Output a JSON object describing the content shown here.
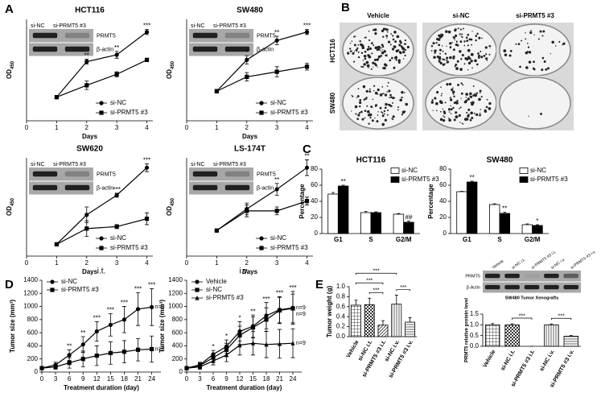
{
  "panels": [
    "A",
    "B",
    "C",
    "D",
    "E"
  ],
  "colony_assay": {
    "columns": [
      "Vehicle",
      "si-NC",
      "si-PRMT5 #3"
    ],
    "rows": [
      "HCT116",
      "SW480"
    ]
  },
  "chart_data": [
    {
      "type": "line",
      "title": "HCT116",
      "xlabel": "Days",
      "ylabel": {
        "text": "OD",
        "subscript": "450"
      },
      "x": [
        1,
        2,
        3,
        4
      ],
      "xlim": [
        0,
        4.2
      ],
      "xticks": [
        0,
        1,
        2,
        3,
        4
      ],
      "ylim": [
        0,
        1.2
      ],
      "legend": "lower right",
      "inset": {
        "lanes": [
          "si-NC",
          "si-PRMT5 #3"
        ],
        "bands": [
          "PRMT5",
          "β-actin"
        ]
      },
      "series": [
        {
          "name": "si-NC",
          "color": "#000000",
          "marker": "circle",
          "values": [
            0.28,
            0.7,
            0.78,
            1.05
          ],
          "errors": [
            0.02,
            0.03,
            0.04,
            0.03
          ]
        },
        {
          "name": "si-PRMT5 #3",
          "color": "#000000",
          "marker": "square",
          "values": [
            0.28,
            0.42,
            0.55,
            0.72
          ],
          "errors": [
            0.02,
            0.05,
            0.03,
            0.02
          ]
        }
      ],
      "annotations": [
        {
          "x": 2,
          "text": "**"
        },
        {
          "x": 3,
          "text": "**"
        },
        {
          "x": 4,
          "text": "***"
        }
      ]
    },
    {
      "type": "line",
      "title": "SW480",
      "xlabel": "Days",
      "ylabel": {
        "text": "OD",
        "subscript": "450"
      },
      "x": [
        1,
        2,
        3,
        4
      ],
      "xlim": [
        0,
        4.2
      ],
      "xticks": [
        0,
        1,
        2,
        3,
        4
      ],
      "ylim": [
        0,
        1.2
      ],
      "legend": "lower right",
      "inset": {
        "lanes": [
          "si-NC",
          "si-PRMT5 #3"
        ],
        "bands": [
          "PRMT5",
          "β-actin"
        ]
      },
      "series": [
        {
          "name": "si-NC",
          "color": "#000000",
          "marker": "circle",
          "values": [
            0.35,
            0.72,
            0.95,
            1.05
          ],
          "errors": [
            0.02,
            0.05,
            0.05,
            0.03
          ]
        },
        {
          "name": "si-PRMT5 #3",
          "color": "#000000",
          "marker": "square",
          "values": [
            0.35,
            0.52,
            0.58,
            0.64
          ],
          "errors": [
            0.02,
            0.05,
            0.06,
            0.04
          ]
        }
      ],
      "annotations": [
        {
          "x": 2,
          "text": "*"
        },
        {
          "x": 3,
          "text": "**"
        },
        {
          "x": 4,
          "text": "***"
        }
      ]
    },
    {
      "type": "line",
      "title": "SW620",
      "xlabel": "Days",
      "ylabel": {
        "text": "OD",
        "subscript": "450"
      },
      "x": [
        1,
        2,
        3,
        4
      ],
      "xlim": [
        0,
        4.2
      ],
      "xticks": [
        0,
        1,
        2,
        3,
        4
      ],
      "ylim": [
        0,
        0.5
      ],
      "legend": "lower right",
      "inset": {
        "lanes": [
          "si-NC",
          "si-PRMT5 #3"
        ],
        "bands": [
          "PRMT5",
          "β-actin"
        ]
      },
      "series": [
        {
          "name": "si-NC",
          "color": "#000000",
          "marker": "circle",
          "values": [
            0.06,
            0.21,
            0.31,
            0.45
          ],
          "errors": [
            0.005,
            0.04,
            0.01,
            0.02
          ]
        },
        {
          "name": "si-PRMT5 #3",
          "color": "#000000",
          "marker": "square",
          "values": [
            0.06,
            0.14,
            0.15,
            0.19
          ],
          "errors": [
            0.005,
            0.04,
            0.01,
            0.03
          ]
        }
      ],
      "annotations": [
        {
          "x": 3,
          "text": "***"
        },
        {
          "x": 4,
          "text": "***"
        }
      ]
    },
    {
      "type": "line",
      "title": "LS-174T",
      "xlabel": "Days",
      "ylabel": {
        "text": "OD",
        "subscript": "450"
      },
      "x": [
        1,
        2,
        3,
        4
      ],
      "xlim": [
        0,
        4.2
      ],
      "xticks": [
        0,
        1,
        2,
        3,
        4
      ],
      "ylim": [
        0,
        0.5
      ],
      "legend": "lower right",
      "inset": {
        "lanes": [
          "si-NC",
          "si-PRMT5 #3"
        ],
        "bands": [
          "PRMT5",
          "β-actin"
        ]
      },
      "series": [
        {
          "name": "si-NC",
          "color": "#000000",
          "marker": "circle",
          "values": [
            0.13,
            0.24,
            0.34,
            0.45
          ],
          "errors": [
            0.005,
            0.03,
            0.03,
            0.04
          ]
        },
        {
          "name": "si-PRMT5 #3",
          "color": "#000000",
          "marker": "square",
          "values": [
            0.13,
            0.23,
            0.23,
            0.28
          ],
          "errors": [
            0.005,
            0.03,
            0.02,
            0.02
          ]
        }
      ],
      "annotations": [
        {
          "x": 3,
          "text": "**"
        },
        {
          "x": 4,
          "text": "**"
        }
      ]
    },
    {
      "type": "bar",
      "title": "HCT116",
      "ylabel": "Percentage",
      "categories": [
        "G1",
        "S",
        "G2/M"
      ],
      "ylim": [
        0,
        80
      ],
      "yticks": [
        0,
        20,
        40,
        60,
        80
      ],
      "legend": "upper right",
      "series": [
        {
          "name": "si-NC",
          "color": "#ffffff",
          "values": [
            49,
            26,
            24
          ],
          "errors": [
            2,
            1.5,
            0.8
          ]
        },
        {
          "name": "si-PRMT5 #3",
          "color": "#000000",
          "values": [
            59,
            26,
            14
          ],
          "errors": [
            1,
            1,
            1.5
          ]
        }
      ],
      "annotations": [
        {
          "category": "G1",
          "series": "si-PRMT5 #3",
          "text": "**"
        },
        {
          "category": "G2/M",
          "series": "si-PRMT5 #3",
          "text": "##"
        }
      ]
    },
    {
      "type": "bar",
      "title": "SW480",
      "ylabel": "Percentage",
      "categories": [
        "G1",
        "S",
        "G2/M"
      ],
      "ylim": [
        0,
        80
      ],
      "yticks": [
        0,
        20,
        40,
        60,
        80
      ],
      "legend": "upper right",
      "series": [
        {
          "name": "si-NC",
          "color": "#ffffff",
          "values": [
            52,
            36,
            11
          ],
          "errors": [
            0.5,
            1,
            1
          ]
        },
        {
          "name": "si-PRMT5 #3",
          "color": "#000000",
          "values": [
            64,
            25,
            10
          ],
          "errors": [
            1,
            1.5,
            1
          ]
        }
      ],
      "annotations": [
        {
          "category": "G1",
          "series": "si-PRMT5 #3",
          "text": "**"
        },
        {
          "category": "S",
          "series": "si-PRMT5 #3",
          "text": "**"
        },
        {
          "category": "G2/M",
          "series": "si-PRMT5 #3",
          "text": "*"
        }
      ]
    },
    {
      "type": "line",
      "title": "i.t.",
      "xlabel": "Treatment duration (day)",
      "ylabel": "Tumor size (mm³)",
      "x": [
        0,
        3,
        6,
        9,
        12,
        15,
        18,
        21,
        24
      ],
      "xlim": [
        0,
        26
      ],
      "xticks": [
        0,
        3,
        6,
        9,
        12,
        15,
        18,
        21,
        24
      ],
      "ylim": [
        0,
        1400
      ],
      "yticks": [
        0,
        200,
        400,
        600,
        800,
        1000,
        1200,
        1400
      ],
      "legend": "upper left",
      "series": [
        {
          "name": "si-NC",
          "color": "#000000",
          "marker": "circle",
          "end_label": "n=9",
          "values": [
            60,
            110,
            260,
            420,
            620,
            720,
            800,
            960,
            990
          ],
          "errors": [
            20,
            40,
            80,
            120,
            150,
            170,
            200,
            250,
            280
          ]
        },
        {
          "name": "si-PRMT5 #3",
          "color": "#000000",
          "marker": "square",
          "end_label": "n=8",
          "values": [
            60,
            80,
            140,
            200,
            250,
            290,
            310,
            340,
            350
          ],
          "errors": [
            20,
            40,
            80,
            120,
            150,
            170,
            170,
            170,
            200
          ]
        }
      ],
      "annotations": [
        {
          "x": 6,
          "text": "**"
        },
        {
          "x": 9,
          "text": "**"
        },
        {
          "x": 12,
          "text": "***"
        },
        {
          "x": 15,
          "text": "***"
        },
        {
          "x": 18,
          "text": "***"
        },
        {
          "x": 21,
          "text": "***"
        },
        {
          "x": 24,
          "text": "***"
        }
      ]
    },
    {
      "type": "line",
      "title": "i.v.",
      "xlabel": "Treatment duration (day)",
      "ylabel": "Tumor size (mm³)",
      "x": [
        0,
        3,
        6,
        9,
        12,
        15,
        18,
        21,
        24
      ],
      "xlim": [
        0,
        26
      ],
      "xticks": [
        0,
        3,
        6,
        9,
        12,
        15,
        18,
        21,
        24
      ],
      "ylim": [
        0,
        1400
      ],
      "yticks": [
        0,
        200,
        400,
        600,
        800,
        1000,
        1200,
        1400
      ],
      "legend": "upper left",
      "series": [
        {
          "name": "Vehicle",
          "color": "#000000",
          "marker": "circle",
          "end_label": "n=9",
          "values": [
            60,
            110,
            270,
            390,
            620,
            700,
            860,
            950,
            980
          ],
          "errors": [
            20,
            40,
            60,
            100,
            150,
            170,
            200,
            200,
            250
          ]
        },
        {
          "name": "si-NC",
          "color": "#000000",
          "marker": "square",
          "end_label": "n=9",
          "values": [
            60,
            100,
            220,
            340,
            560,
            680,
            800,
            940,
            970
          ],
          "errors": [
            20,
            40,
            60,
            100,
            140,
            160,
            180,
            200,
            220
          ]
        },
        {
          "name": "si-PRMT5 #3",
          "color": "#000000",
          "marker": "triangle",
          "end_label": "n=9",
          "values": [
            60,
            80,
            170,
            260,
            410,
            440,
            420,
            430,
            440
          ],
          "errors": [
            20,
            40,
            60,
            100,
            150,
            180,
            200,
            220,
            220
          ]
        }
      ],
      "annotations": [
        {
          "x": 6,
          "text": "*"
        },
        {
          "x": 9,
          "text": "*"
        },
        {
          "x": 12,
          "text": "*"
        },
        {
          "x": 15,
          "text": "**"
        },
        {
          "x": 18,
          "text": "***"
        },
        {
          "x": 21,
          "text": "***"
        },
        {
          "x": 24,
          "text": "***"
        }
      ]
    },
    {
      "type": "bar",
      "ylabel": "Tumor weight (g)",
      "categories": [
        "Vehicle",
        "si-NC i.t.",
        "si-PRMT5 #3 i.t.",
        "si-NC i.v.",
        "si-PRMT5 #3 i.v."
      ],
      "values": [
        0.63,
        0.64,
        0.23,
        0.65,
        0.29
      ],
      "errors": [
        0.1,
        0.13,
        0.09,
        0.18,
        0.09
      ],
      "hatch": [
        "grid",
        "checker",
        "diagonal",
        "vertical",
        "horizontal"
      ],
      "ylim": [
        0,
        1.0
      ],
      "yticks": [
        {
          "value": 0,
          "label": "0.0"
        },
        0.2,
        0.4,
        0.6,
        0.8,
        {
          "value": 1.0,
          "label": "1.0"
        }
      ],
      "brackets": [
        {
          "from": "Vehicle",
          "to": "si-NC i.v.",
          "text": "***"
        },
        {
          "from": "Vehicle",
          "to": "si-PRMT5 #3 i.t.",
          "text": "***"
        },
        {
          "from": "si-NC i.t.",
          "to": "si-PRMT5 #3 i.t.",
          "text": "***"
        },
        {
          "from": "si-NC i.v.",
          "to": "si-PRMT5 #3 i.v.",
          "text": "***"
        }
      ]
    },
    {
      "type": "bar",
      "ylabel": "PRMT5 relative protein level",
      "categories": [
        "Vehicle",
        "si-NC i.t.",
        "si-PRMT5 #3 i.t.",
        "si-NC i.v.",
        "si-PRMT5 #3 i.v."
      ],
      "values": [
        1.0,
        1.0,
        0,
        1.0,
        0.47
      ],
      "errors": [
        0.06,
        0.05,
        0,
        0.04,
        0.03
      ],
      "hatch": [
        "grid",
        "checker",
        "diagonal",
        "vertical",
        "horizontal"
      ],
      "ylim": [
        0,
        1.5
      ],
      "yticks": [
        {
          "value": 0,
          "label": "0.0"
        },
        0.5,
        {
          "value": 1.0,
          "label": "1.0"
        },
        1.5
      ],
      "inset": {
        "lanes": [
          "Vehicle",
          "si-NC i.t.",
          "si-PRMT5 #3 i.t.",
          "si-NC i.v.",
          "si-PRMT5 #3 i.v."
        ],
        "bands": [
          "PRMT5",
          "β-Actin"
        ],
        "caption": "SW480 Tumor Xenografts"
      },
      "brackets": [
        {
          "from": "si-NC i.t.",
          "to": "si-PRMT5 #3 i.t.",
          "text": "***"
        },
        {
          "from": "si-NC i.v.",
          "to": "si-PRMT5 #3 i.v.",
          "text": "***"
        }
      ]
    }
  ]
}
